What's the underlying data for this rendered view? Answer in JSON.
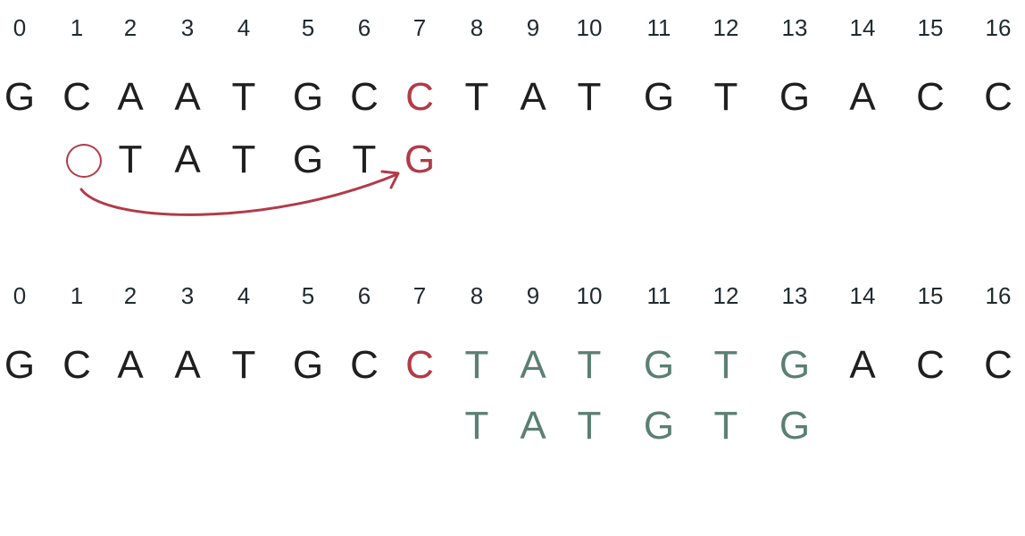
{
  "colors": {
    "text": "#1f1f1f",
    "mismatch": "#b23a48",
    "match": "#5b7f73",
    "index": "#1f2a2e"
  },
  "step1": {
    "indices": [
      "0",
      "1",
      "2",
      "3",
      "4",
      "5",
      "6",
      "7",
      "8",
      "9",
      "10",
      "11",
      "12",
      "13",
      "14",
      "15",
      "16"
    ],
    "text": [
      "G",
      "C",
      "A",
      "A",
      "T",
      "G",
      "C",
      "C",
      "T",
      "A",
      "T",
      "G",
      "T",
      "G",
      "A",
      "C",
      "C"
    ],
    "text_highlight_index": 7,
    "pattern": [
      "T",
      "A",
      "T",
      "G",
      "T",
      "G"
    ],
    "pattern_start_index": 2,
    "pattern_highlight_index": 5,
    "circle_marker_index": 1,
    "arrow_label": "shift-arrow"
  },
  "step2": {
    "indices": [
      "0",
      "1",
      "2",
      "3",
      "4",
      "5",
      "6",
      "7",
      "8",
      "9",
      "10",
      "11",
      "12",
      "13",
      "14",
      "15",
      "16"
    ],
    "text": [
      "G",
      "C",
      "A",
      "A",
      "T",
      "G",
      "C",
      "C",
      "T",
      "A",
      "T",
      "G",
      "T",
      "G",
      "A",
      "C",
      "C"
    ],
    "text_mismatch_index": 7,
    "text_match_start": 8,
    "text_match_end": 13,
    "pattern": [
      "T",
      "A",
      "T",
      "G",
      "T",
      "G"
    ],
    "pattern_start_index": 8
  }
}
